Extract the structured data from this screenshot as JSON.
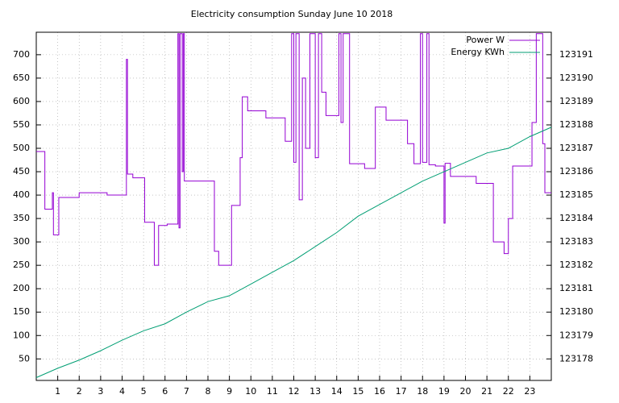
{
  "chart_data": {
    "type": "line",
    "title": "Electricity consumption Sunday June 10 2018",
    "xlim": [
      0,
      24
    ],
    "xticks": [
      1,
      2,
      3,
      4,
      5,
      6,
      7,
      8,
      9,
      10,
      11,
      12,
      13,
      14,
      15,
      16,
      17,
      18,
      19,
      20,
      21,
      22,
      23
    ],
    "ylim": [
      4,
      748
    ],
    "yticks": [
      50,
      100,
      150,
      200,
      250,
      300,
      350,
      400,
      450,
      500,
      550,
      600,
      650,
      700
    ],
    "y2lim": [
      123177.08,
      123191.96
    ],
    "y2ticks": [
      123178,
      123179,
      123180,
      123181,
      123182,
      123183,
      123184,
      123185,
      123186,
      123187,
      123188,
      123189,
      123190,
      123191
    ],
    "grid": true,
    "legend": "top-right",
    "series": [
      {
        "name": "Power W",
        "color": "#9400d3",
        "x": [
          0,
          0.4,
          0.4,
          0.75,
          0.75,
          0.8,
          0.8,
          1.05,
          1.05,
          2.0,
          2.0,
          3.3,
          3.3,
          4.2,
          4.2,
          4.25,
          4.25,
          4.5,
          4.5,
          5.05,
          5.05,
          5.5,
          5.5,
          5.7,
          5.7,
          6.1,
          6.1,
          6.6,
          6.6,
          6.65,
          6.65,
          6.7,
          6.7,
          6.8,
          6.8,
          6.85,
          6.85,
          6.9,
          6.9,
          8.3,
          8.3,
          8.5,
          8.5,
          9.1,
          9.1,
          9.5,
          9.5,
          9.6,
          9.6,
          9.85,
          9.85,
          10.7,
          10.7,
          11.6,
          11.6,
          11.9,
          11.9,
          12.0,
          12.0,
          12.1,
          12.1,
          12.25,
          12.25,
          12.4,
          12.4,
          12.55,
          12.55,
          12.75,
          12.75,
          13.0,
          13.0,
          13.15,
          13.15,
          13.3,
          13.3,
          13.5,
          13.5,
          14.1,
          14.1,
          14.2,
          14.2,
          14.3,
          14.3,
          14.6,
          14.6,
          15.3,
          15.3,
          15.8,
          15.8,
          16.3,
          16.3,
          17.3,
          17.3,
          17.6,
          17.6,
          17.9,
          17.9,
          18.0,
          18.0,
          18.2,
          18.2,
          18.3,
          18.3,
          18.6,
          18.6,
          19.0,
          19.0,
          19.05,
          19.05,
          19.3,
          19.3,
          20.5,
          20.5,
          21.3,
          21.3,
          21.8,
          21.8,
          22.0,
          22.0,
          22.2,
          22.2,
          23.1,
          23.1,
          23.3,
          23.3,
          23.6,
          23.6,
          23.7,
          23.7,
          24
        ],
        "values": [
          493,
          493,
          370,
          370,
          405,
          405,
          315,
          315,
          395,
          395,
          405,
          405,
          400,
          400,
          690,
          690,
          445,
          445,
          437,
          437,
          342,
          342,
          250,
          250,
          335,
          335,
          338,
          338,
          745,
          745,
          330,
          330,
          745,
          745,
          450,
          450,
          745,
          745,
          430,
          430,
          280,
          280,
          250,
          250,
          378,
          378,
          480,
          480,
          610,
          610,
          580,
          580,
          565,
          565,
          515,
          515,
          745,
          745,
          470,
          470,
          745,
          745,
          390,
          390,
          650,
          650,
          500,
          500,
          745,
          745,
          480,
          480,
          745,
          745,
          620,
          620,
          570,
          570,
          745,
          745,
          555,
          555,
          745,
          745,
          467,
          467,
          457,
          457,
          588,
          588,
          560,
          560,
          510,
          510,
          467,
          467,
          745,
          745,
          470,
          470,
          745,
          745,
          465,
          465,
          462,
          462,
          340,
          340,
          468,
          468,
          440,
          440,
          425,
          425,
          300,
          300,
          275,
          275,
          350,
          350,
          462,
          462,
          555,
          555,
          745,
          745,
          510,
          510,
          405,
          405
        ]
      },
      {
        "name": "Energy KWh",
        "color": "#009e73",
        "axis": "y2",
        "x": [
          0,
          1,
          2,
          3,
          4,
          5,
          6,
          7,
          8,
          9,
          10,
          11,
          12,
          13,
          14,
          15,
          16,
          17,
          18,
          19,
          20,
          21,
          22,
          23,
          24
        ],
        "values": [
          123177.2,
          123177.6,
          123177.95,
          123178.35,
          123178.8,
          123179.2,
          123179.5,
          123180.0,
          123180.45,
          123180.7,
          123181.2,
          123181.7,
          123182.2,
          123182.8,
          123183.4,
          123184.1,
          123184.6,
          123185.1,
          123185.6,
          123186.0,
          123186.4,
          123186.8,
          123187.0,
          123187.5,
          123187.9
        ]
      }
    ]
  }
}
